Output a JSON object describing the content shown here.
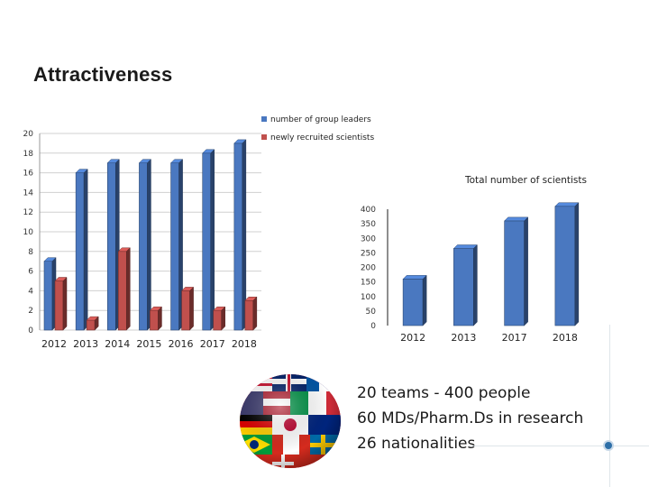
{
  "slide": {
    "title": "Attractiveness",
    "facts": [
      "20 teams - 400 people",
      "60 MDs/Pharm.Ds in research",
      "26 nationalities"
    ]
  },
  "colors": {
    "blue": "#4a78c0",
    "red": "#c0504d",
    "grid": "#d0d0d0"
  },
  "globe": {
    "icon": "world-flags-globe-icon"
  },
  "chart_data": [
    {
      "type": "bar",
      "title": "",
      "categories": [
        "2012",
        "2013",
        "2014",
        "2015",
        "2016",
        "2017",
        "2018"
      ],
      "series": [
        {
          "name": "number of group leaders",
          "values": [
            7,
            16,
            17,
            17,
            17,
            18,
            19
          ]
        },
        {
          "name": "newly recruited scientists",
          "values": [
            5,
            1,
            8,
            2,
            4,
            2,
            3
          ]
        }
      ],
      "ylim": [
        0,
        20
      ],
      "yticks": [
        0,
        2,
        4,
        6,
        8,
        10,
        12,
        14,
        16,
        18,
        20
      ],
      "grid": true,
      "legend": "top-right"
    },
    {
      "type": "bar",
      "title": "Total number of scientists",
      "categories": [
        "2012",
        "2013",
        "2017",
        "2018"
      ],
      "series": [
        {
          "name": "Total number of scientists",
          "values": [
            160,
            265,
            360,
            410
          ]
        }
      ],
      "ylim": [
        0,
        400
      ],
      "yticks": [
        0,
        50,
        100,
        150,
        200,
        250,
        300,
        350,
        400
      ],
      "grid": false
    }
  ]
}
